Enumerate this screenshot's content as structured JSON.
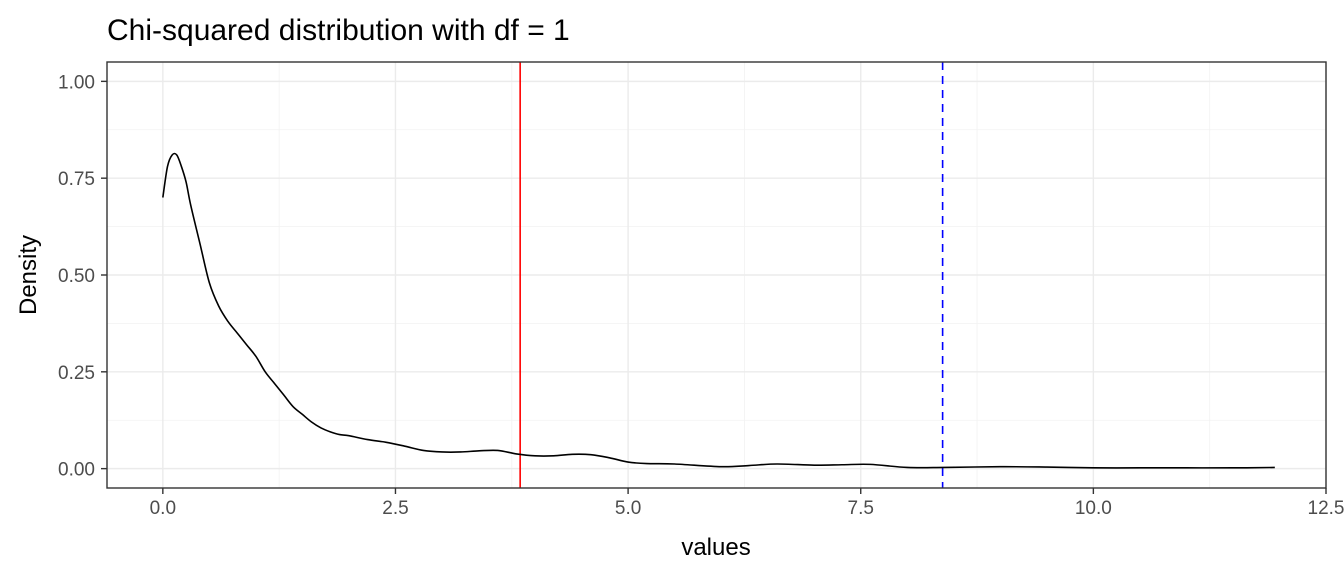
{
  "chart_data": {
    "type": "line",
    "title": "Chi-squared distribution with df = 1",
    "xlabel": "values",
    "ylabel": "Density",
    "xlim": [
      -0.6,
      12.5
    ],
    "ylim": [
      -0.05,
      1.05
    ],
    "x_ticks": [
      0.0,
      2.5,
      5.0,
      7.5,
      10.0,
      12.5
    ],
    "x_tick_labels": [
      "0.0",
      "2.5",
      "5.0",
      "7.5",
      "10.0",
      "12.5"
    ],
    "y_ticks": [
      0.0,
      0.25,
      0.5,
      0.75,
      1.0
    ],
    "y_tick_labels": [
      "0.00",
      "0.25",
      "0.50",
      "0.75",
      "1.00"
    ],
    "grid": true,
    "series": [
      {
        "color": "#000000",
        "x": [
          0.0,
          0.05,
          0.1,
          0.15,
          0.2,
          0.25,
          0.3,
          0.4,
          0.5,
          0.6,
          0.7,
          0.8,
          0.9,
          1.0,
          1.1,
          1.2,
          1.3,
          1.4,
          1.5,
          1.6,
          1.7,
          1.8,
          1.9,
          2.0,
          2.2,
          2.4,
          2.6,
          2.8,
          3.0,
          3.2,
          3.4,
          3.6,
          3.8,
          4.0,
          4.2,
          4.4,
          4.6,
          4.8,
          5.0,
          5.2,
          5.5,
          6.0,
          6.3,
          6.6,
          7.0,
          7.3,
          7.6,
          8.0,
          8.4,
          9.0,
          9.5,
          10.0,
          10.5,
          11.0,
          11.5,
          11.95
        ],
        "y": [
          0.7,
          0.78,
          0.81,
          0.81,
          0.78,
          0.74,
          0.68,
          0.58,
          0.48,
          0.42,
          0.38,
          0.35,
          0.32,
          0.29,
          0.25,
          0.22,
          0.19,
          0.16,
          0.14,
          0.12,
          0.105,
          0.095,
          0.088,
          0.085,
          0.075,
          0.068,
          0.058,
          0.047,
          0.043,
          0.043,
          0.046,
          0.047,
          0.038,
          0.033,
          0.033,
          0.037,
          0.036,
          0.028,
          0.017,
          0.013,
          0.012,
          0.005,
          0.008,
          0.012,
          0.009,
          0.01,
          0.011,
          0.003,
          0.003,
          0.005,
          0.004,
          0.002,
          0.002,
          0.002,
          0.002,
          0.003
        ]
      }
    ],
    "vlines": [
      {
        "x": 3.84,
        "color": "#ff0000",
        "linetype": "solid"
      },
      {
        "x": 8.38,
        "color": "#0000ff",
        "linetype": "dashed"
      }
    ]
  }
}
